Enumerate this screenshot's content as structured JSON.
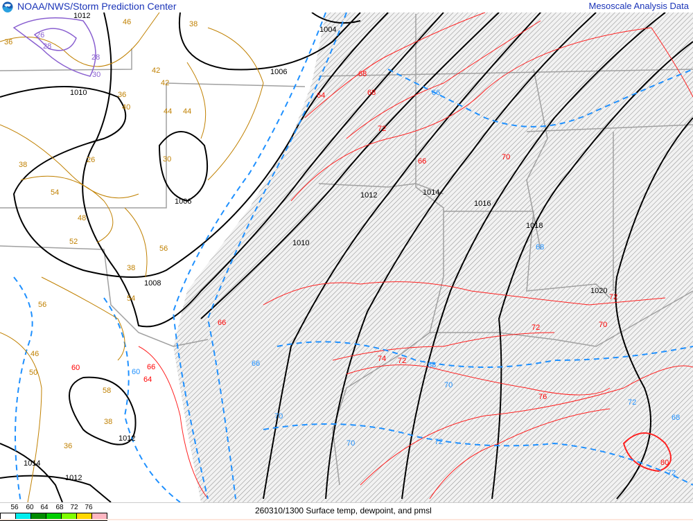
{
  "header": {
    "org": "NOAA/NWS/Storm Prediction Center",
    "product": "Mesoscale Analysis Data",
    "logo_icon": "noaa-logo"
  },
  "footer": {
    "caption": "260310/1300 Surface temp, dewpoint, and pmsl",
    "dewpoint_scale": {
      "ticks": [
        "56",
        "60",
        "64",
        "68",
        "72",
        "76"
      ],
      "colors": [
        "#ffffff",
        "#00eeee",
        "#008b00",
        "#00cd00",
        "#7fff00",
        "#ffd700",
        "#ffb6c1"
      ]
    }
  },
  "map": {
    "colors": {
      "isobar": "#000000",
      "temperature": "#ff0000",
      "dewpoint": "#1e90ff",
      "cold_temp": "#c08000",
      "very_cold": "#8a60d0",
      "borders": "#a0a0a0",
      "hatch": "#808080"
    },
    "isobar_labels": [
      "1004",
      "1006",
      "1008",
      "1010",
      "1010",
      "1012",
      "1014",
      "1016",
      "1018",
      "1020",
      "1012",
      "1006",
      "1012",
      "1014",
      "1012"
    ],
    "temp_labels": [
      "68",
      "68",
      "64",
      "72",
      "66",
      "70",
      "70",
      "72",
      "74",
      "72",
      "76",
      "60",
      "66",
      "64",
      "66",
      "80",
      "72"
    ],
    "dewpoint_labels": [
      "66",
      "68",
      "70",
      "68",
      "70",
      "72",
      "72",
      "70",
      "72",
      "68",
      "60",
      "66"
    ],
    "cold_labels": [
      "46",
      "38",
      "42",
      "36",
      "40",
      "44",
      "26",
      "30",
      "38",
      "54",
      "48",
      "52",
      "56",
      "42",
      "44",
      "36",
      "38",
      "46",
      "50",
      "58",
      "38",
      "36",
      "56",
      "54"
    ],
    "purple_labels": [
      "26",
      "28",
      "28",
      "30"
    ]
  }
}
